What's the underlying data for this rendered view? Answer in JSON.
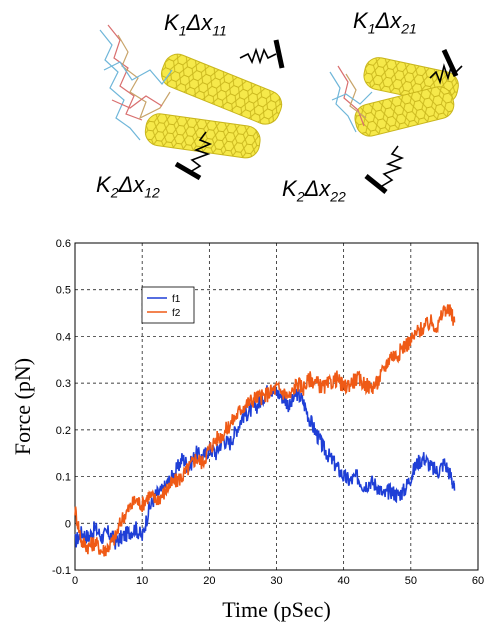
{
  "diagram": {
    "spring_labels": [
      {
        "k": "K",
        "k_sub": "1",
        "delta": "Δx",
        "delta_sub": "11"
      },
      {
        "k": "K",
        "k_sub": "1",
        "delta": "Δx",
        "delta_sub": "21"
      },
      {
        "k": "K",
        "k_sub": "2",
        "delta": "Δx",
        "delta_sub": "12"
      },
      {
        "k": "K",
        "k_sub": "2",
        "delta": "Δx",
        "delta_sub": "22"
      }
    ],
    "nanotube_color": "#f2e23a",
    "dna_colors": [
      "#6fb6d9",
      "#d96f6f",
      "#c8a46a"
    ]
  },
  "chart_data": {
    "type": "line",
    "xlabel": "Time (pSec)",
    "ylabel": "Force (pN)",
    "xlim": [
      0,
      60
    ],
    "ylim": [
      -0.1,
      0.6
    ],
    "xticks": [
      "0",
      "10",
      "20",
      "30",
      "40",
      "50",
      "60"
    ],
    "yticks": [
      "-0.1",
      "0",
      "0.1",
      "0.2",
      "0.3",
      "0.4",
      "0.5",
      "0.6"
    ],
    "grid": true,
    "legend_position": "top-left",
    "series": [
      {
        "name": "f1",
        "color": "#1f3fd6",
        "x": [
          0,
          1,
          2,
          3,
          4,
          5,
          6,
          7,
          8,
          9,
          10,
          11,
          12,
          13,
          14,
          15,
          16,
          17,
          18,
          19,
          20,
          21,
          22,
          23,
          24,
          25,
          26,
          27,
          28,
          29,
          30,
          31,
          32,
          33,
          34,
          35,
          36,
          37,
          38,
          39,
          40,
          41,
          42,
          43,
          44,
          45,
          46,
          47,
          48,
          49,
          50,
          51,
          52,
          53,
          54,
          55,
          56,
          56.5
        ],
        "y": [
          -0.04,
          -0.02,
          -0.03,
          -0.01,
          -0.03,
          -0.02,
          -0.04,
          -0.03,
          -0.02,
          -0.01,
          -0.03,
          0.03,
          0.06,
          0.07,
          0.09,
          0.11,
          0.14,
          0.12,
          0.15,
          0.14,
          0.16,
          0.15,
          0.18,
          0.17,
          0.2,
          0.23,
          0.24,
          0.25,
          0.27,
          0.29,
          0.28,
          0.27,
          0.25,
          0.28,
          0.26,
          0.22,
          0.19,
          0.16,
          0.14,
          0.12,
          0.1,
          0.09,
          0.1,
          0.08,
          0.09,
          0.08,
          0.06,
          0.07,
          0.06,
          0.07,
          0.1,
          0.13,
          0.14,
          0.12,
          0.11,
          0.13,
          0.1,
          0.07
        ]
      },
      {
        "name": "f2",
        "color": "#ef5a16",
        "x": [
          0,
          1,
          2,
          3,
          4,
          5,
          6,
          7,
          8,
          9,
          10,
          11,
          12,
          13,
          14,
          15,
          16,
          17,
          18,
          19,
          20,
          21,
          22,
          23,
          24,
          25,
          26,
          27,
          28,
          29,
          30,
          31,
          32,
          33,
          34,
          35,
          36,
          37,
          38,
          39,
          40,
          41,
          42,
          43,
          44,
          45,
          46,
          47,
          48,
          49,
          50,
          51,
          52,
          53,
          54,
          55,
          56,
          56.5
        ],
        "y": [
          0.03,
          -0.04,
          -0.05,
          -0.04,
          -0.06,
          -0.05,
          -0.03,
          0.01,
          0.03,
          0.05,
          0.04,
          0.06,
          0.05,
          0.06,
          0.08,
          0.09,
          0.1,
          0.12,
          0.14,
          0.13,
          0.16,
          0.18,
          0.19,
          0.21,
          0.23,
          0.25,
          0.26,
          0.27,
          0.27,
          0.28,
          0.29,
          0.28,
          0.27,
          0.3,
          0.29,
          0.31,
          0.3,
          0.29,
          0.3,
          0.31,
          0.29,
          0.3,
          0.31,
          0.3,
          0.29,
          0.3,
          0.33,
          0.36,
          0.36,
          0.38,
          0.39,
          0.41,
          0.42,
          0.43,
          0.42,
          0.46,
          0.45,
          0.43
        ]
      }
    ]
  }
}
